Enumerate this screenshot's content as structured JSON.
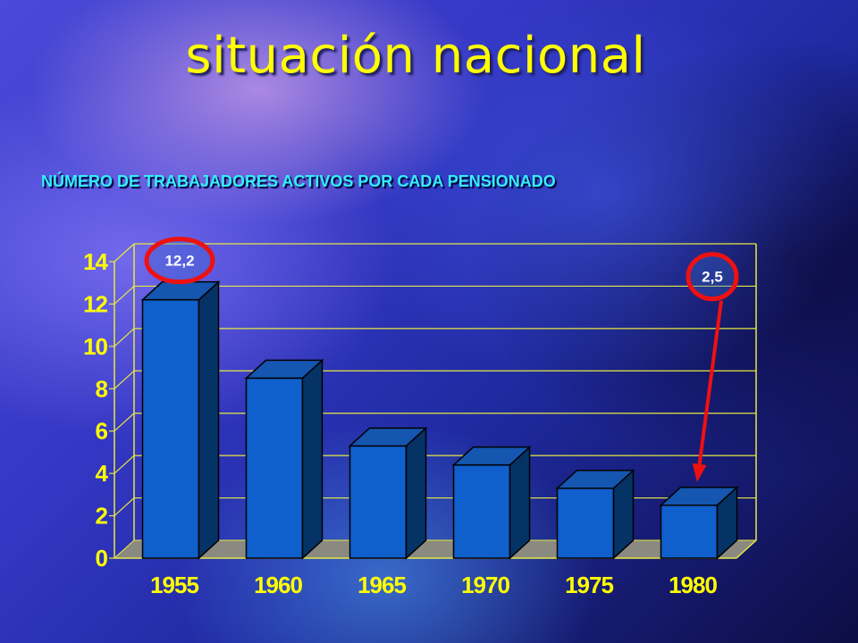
{
  "slide": {
    "title": "situación nacional",
    "subtitle": "NÚMERO DE TRABAJADORES ACTIVOS POR CADA PENSIONADO"
  },
  "chart_data": {
    "type": "bar",
    "categories": [
      "1955",
      "1960",
      "1965",
      "1970",
      "1975",
      "1980"
    ],
    "values": [
      12.2,
      8.5,
      5.3,
      4.4,
      3.3,
      2.5
    ],
    "title": "",
    "xlabel": "",
    "ylabel": "",
    "ylim": [
      0,
      14
    ],
    "yticks": [
      "0",
      "2",
      "4",
      "6",
      "8",
      "10",
      "12",
      "14"
    ],
    "grid": true,
    "annotations": [
      {
        "category": "1955",
        "label": "12,2",
        "highlight": "circle"
      },
      {
        "category": "1980",
        "label": "2,5",
        "highlight": "circle-with-arrow"
      }
    ],
    "colors": {
      "bar_front": "#0f5fcc",
      "bar_side": "#063366",
      "bar_top": "#1456b0",
      "tick_labels": "#ffff00",
      "grid": "#e8e840",
      "highlight": "#ee1111"
    }
  }
}
